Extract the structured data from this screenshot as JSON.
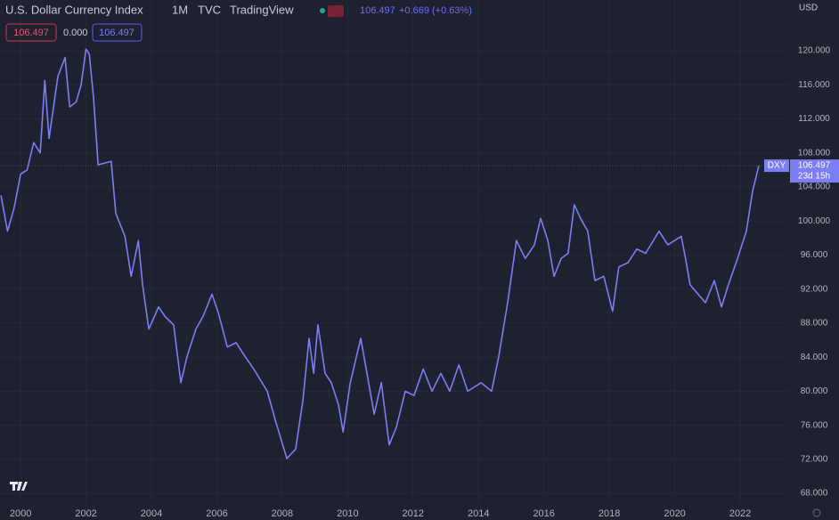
{
  "chart_data": {
    "type": "line",
    "title": "U.S. Dollar Currency Index",
    "interval": "1M",
    "exchange": "TVC",
    "source": "TradingView",
    "currency": "USD",
    "change": "+0.669 (+0.63%)",
    "spread": {
      "value": 0,
      "label": "0.000"
    },
    "countdown": "23d 15h",
    "x": [
      1999.4,
      1999.6,
      1999.8,
      2000.0,
      2000.2,
      2000.4,
      2000.6,
      2000.74,
      2000.87,
      2001.14,
      2001.36,
      2001.5,
      2001.7,
      2001.85,
      2002.0,
      2002.1,
      2002.23,
      2002.37,
      2002.77,
      2002.91,
      2003.19,
      2003.38,
      2003.6,
      2003.73,
      2003.92,
      2004.22,
      2004.41,
      2004.68,
      2004.9,
      2005.09,
      2005.36,
      2005.58,
      2005.85,
      2006.04,
      2006.32,
      2006.59,
      2006.86,
      2007.13,
      2007.54,
      2007.81,
      2008.14,
      2008.41,
      2008.63,
      2008.82,
      2008.96,
      2009.09,
      2009.31,
      2009.5,
      2009.72,
      2009.86,
      2010.08,
      2010.4,
      2010.59,
      2010.81,
      2011.03,
      2011.27,
      2011.49,
      2011.76,
      2012.03,
      2012.31,
      2012.58,
      2012.85,
      2013.12,
      2013.4,
      2013.67,
      2014.08,
      2014.4,
      2014.62,
      2014.89,
      2015.16,
      2015.43,
      2015.71,
      2015.9,
      2016.12,
      2016.31,
      2016.53,
      2016.74,
      2016.93,
      2017.12,
      2017.34,
      2017.56,
      2017.83,
      2018.1,
      2018.29,
      2018.57,
      2018.84,
      2019.11,
      2019.52,
      2019.79,
      2020.2,
      2020.33,
      2020.47,
      2020.94,
      2021.21,
      2021.43,
      2021.64,
      2021.92,
      2022.19,
      2022.38,
      2022.57
    ],
    "series": [
      {
        "name": "DXY",
        "color": "#7b7ef4",
        "values": [
          103,
          98.8,
          101.5,
          105.5,
          106,
          109.2,
          108,
          116.5,
          109.7,
          117,
          119.2,
          113.4,
          114,
          116,
          120.2,
          119.6,
          114.5,
          106.6,
          107,
          100.9,
          98.2,
          93.5,
          97.7,
          92.5,
          87.3,
          89.9,
          88.8,
          87.8,
          81,
          84.1,
          87.3,
          88.8,
          91.4,
          89.3,
          85.2,
          85.7,
          84.1,
          82.6,
          80,
          76.3,
          72.1,
          73.2,
          78.9,
          86.2,
          82.1,
          87.8,
          82.1,
          81,
          78.4,
          75.2,
          81,
          86.2,
          82.1,
          77.3,
          81,
          73.7,
          75.8,
          80,
          79.5,
          82.6,
          80,
          82.1,
          80,
          83.1,
          80,
          81,
          80,
          84.1,
          90.4,
          97.7,
          95.6,
          97.2,
          100.3,
          97.7,
          93.5,
          95.6,
          96.2,
          101.9,
          100.3,
          98.8,
          93,
          93.5,
          89.4,
          94.6,
          95.1,
          96.7,
          96.2,
          98.8,
          97.2,
          98.2,
          95.6,
          92.5,
          90.4,
          93,
          89.9,
          92.5,
          95.6,
          98.8,
          103.5,
          106.497
        ]
      }
    ],
    "xlim": [
      1999.37,
      2023.47
    ],
    "xticks": [
      2000,
      2002,
      2004,
      2006,
      2008,
      2010,
      2012,
      2014,
      2016,
      2018,
      2020,
      2022
    ],
    "ylim": [
      66.86,
      125.96
    ],
    "yticks": [
      {
        "value": 68,
        "label": "68.000"
      },
      {
        "value": 72,
        "label": "72.000"
      },
      {
        "value": 76,
        "label": "76.000"
      },
      {
        "value": 80,
        "label": "80.000"
      },
      {
        "value": 84,
        "label": "84.000"
      },
      {
        "value": 88,
        "label": "88.000"
      },
      {
        "value": 92,
        "label": "92.000"
      },
      {
        "value": 96,
        "label": "96.000"
      },
      {
        "value": 100,
        "label": "100.000"
      },
      {
        "value": 104,
        "label": "104.000"
      },
      {
        "value": 108,
        "label": "108.000"
      },
      {
        "value": 112,
        "label": "112.000"
      },
      {
        "value": 116,
        "label": "116.000"
      },
      {
        "value": 120,
        "label": "120.000"
      }
    ],
    "grid": true
  }
}
